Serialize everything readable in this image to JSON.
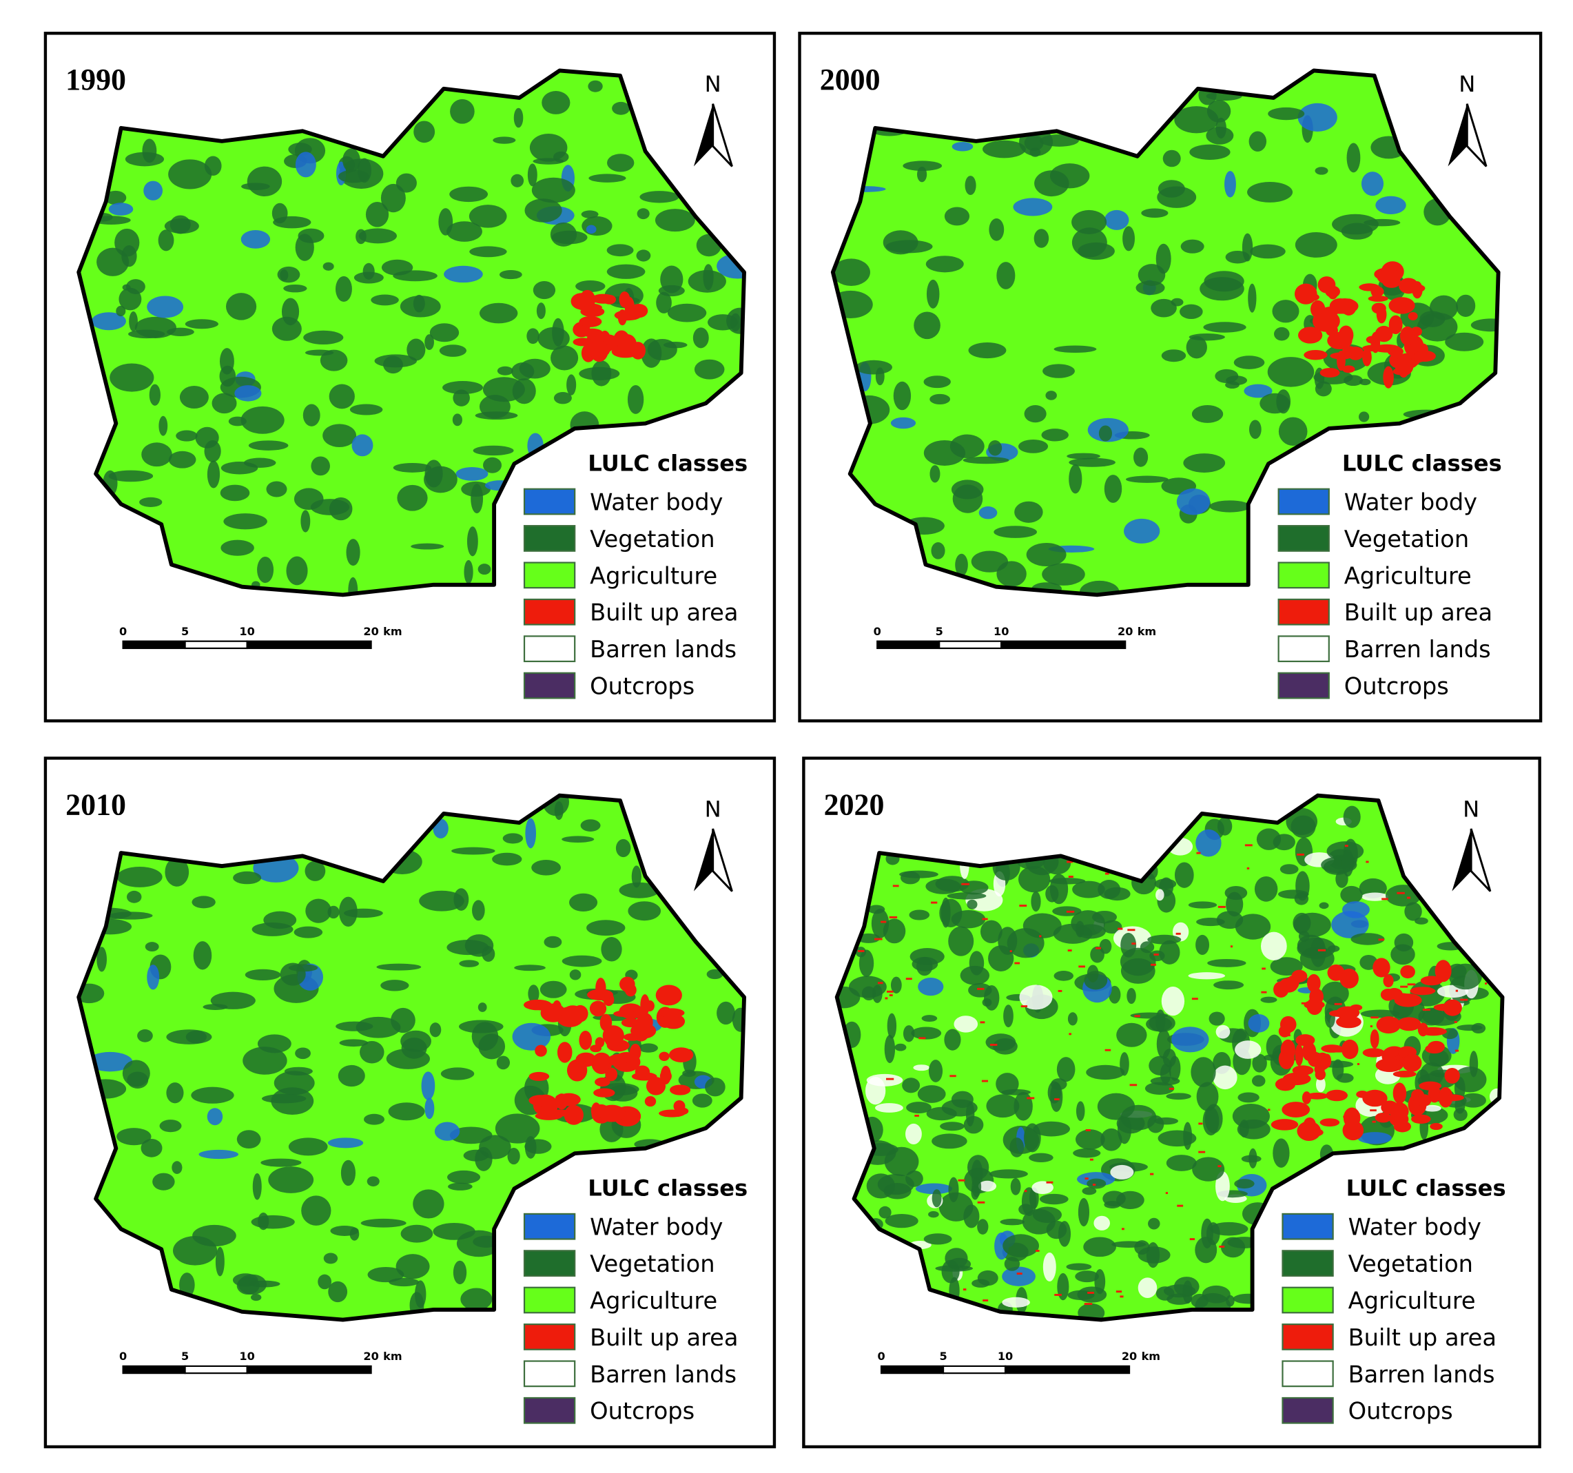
{
  "panels": [
    {
      "year": "1990",
      "north": "N",
      "legend_title": "LULC classes",
      "legend": [
        {
          "label": "Water body",
          "color": "#1d6ad8"
        },
        {
          "label": "Vegetation",
          "color": "#1f6e2c"
        },
        {
          "label": "Agriculture",
          "color": "#66ff1a"
        },
        {
          "label": "Built up area",
          "color": "#ee1c0c"
        },
        {
          "label": "Barren lands",
          "color": "#ffffff"
        },
        {
          "label": "Outcrops",
          "color": "#4b2d63"
        }
      ],
      "scale": {
        "ticks": [
          0,
          5,
          10,
          20
        ],
        "unit": "km"
      }
    },
    {
      "year": "2000",
      "north": "N",
      "legend_title": "LULC classes",
      "legend": [
        {
          "label": "Water body",
          "color": "#1d6ad8"
        },
        {
          "label": "Vegetation",
          "color": "#1f6e2c"
        },
        {
          "label": "Agriculture",
          "color": "#66ff1a"
        },
        {
          "label": "Built up area",
          "color": "#ee1c0c"
        },
        {
          "label": "Barren lands",
          "color": "#ffffff"
        },
        {
          "label": "Outcrops",
          "color": "#4b2d63"
        }
      ],
      "scale": {
        "ticks": [
          0,
          5,
          10,
          20
        ],
        "unit": "km"
      }
    },
    {
      "year": "2010",
      "north": "N",
      "legend_title": "LULC classes",
      "legend": [
        {
          "label": "Water body",
          "color": "#1d6ad8"
        },
        {
          "label": "Vegetation",
          "color": "#1f6e2c"
        },
        {
          "label": "Agriculture",
          "color": "#66ff1a"
        },
        {
          "label": "Built up area",
          "color": "#ee1c0c"
        },
        {
          "label": "Barren lands",
          "color": "#ffffff"
        },
        {
          "label": "Outcrops",
          "color": "#4b2d63"
        }
      ],
      "scale": {
        "ticks": [
          0,
          5,
          10,
          20
        ],
        "unit": "km"
      }
    },
    {
      "year": "2020",
      "north": "N",
      "legend_title": "LULC classes",
      "legend": [
        {
          "label": "Water body",
          "color": "#1d6ad8"
        },
        {
          "label": "Vegetation",
          "color": "#1f6e2c"
        },
        {
          "label": "Agriculture",
          "color": "#66ff1a"
        },
        {
          "label": "Built up area",
          "color": "#ee1c0c"
        },
        {
          "label": "Barren lands",
          "color": "#ffffff"
        },
        {
          "label": "Outcrops",
          "color": "#4b2d63"
        }
      ],
      "scale": {
        "ticks": [
          0,
          5,
          10,
          20
        ],
        "unit": "km"
      }
    }
  ]
}
